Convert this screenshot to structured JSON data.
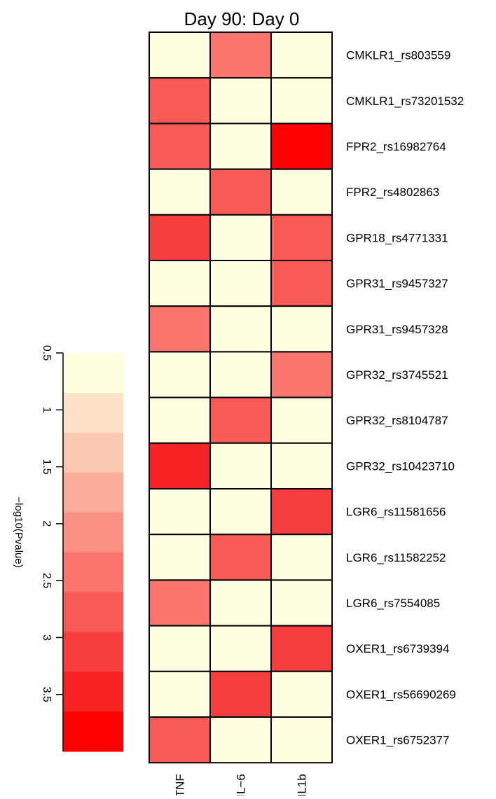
{
  "chart_data": {
    "type": "heatmap",
    "title": "Day 90: Day 0",
    "columns": [
      "TNF",
      "IL−6",
      "IL1b"
    ],
    "rows": [
      "CMKLR1_rs803559",
      "CMKLR1_rs73201532",
      "FPR2_rs16982764",
      "FPR2_rs4802863",
      "GPR18_rs4771331",
      "GPR31_rs9457327",
      "GPR31_rs9457328",
      "GPR32_rs3745521",
      "GPR32_rs8104787",
      "GPR32_rs10423710",
      "LGR6_rs11581656",
      "LGR6_rs11582252",
      "LGR6_rs7554085",
      "OXER1_rs6739394",
      "OXER1_rs56690269",
      "OXER1_rs6752377"
    ],
    "values": [
      [
        0.5,
        2.3,
        0.5
      ],
      [
        2.6,
        0.5,
        0.5
      ],
      [
        2.6,
        0.5,
        3.8
      ],
      [
        0.5,
        2.6,
        0.5
      ],
      [
        3.1,
        0.5,
        2.6
      ],
      [
        0.5,
        0.5,
        2.6
      ],
      [
        2.3,
        0.5,
        0.5
      ],
      [
        0.5,
        0.5,
        2.3
      ],
      [
        0.5,
        2.6,
        0.5
      ],
      [
        3.6,
        0.5,
        0.5
      ],
      [
        0.5,
        0.5,
        3.1
      ],
      [
        0.5,
        2.6,
        0.5
      ],
      [
        2.3,
        0.5,
        0.5
      ],
      [
        0.5,
        0.5,
        3.1
      ],
      [
        0.5,
        3.1,
        0.5
      ],
      [
        2.6,
        0.5,
        0.5
      ]
    ],
    "colorbar": {
      "label": "−log10(Pvalue)",
      "range": [
        0.5,
        4.0
      ],
      "ticks": [
        "0.5",
        "1",
        "1.5",
        "2",
        "2.5",
        "3",
        "3.5"
      ],
      "tick_values": [
        0.5,
        1.0,
        1.5,
        2.0,
        2.5,
        3.0,
        3.5
      ],
      "colors": [
        "#FFFFE1",
        "#FDE2C9",
        "#FCC7B0",
        "#FBAD9A",
        "#FA9184",
        "#F9756E",
        "#F85A56",
        "#F73E3F",
        "#F62323",
        "#FF0000"
      ]
    },
    "cell_border_color": "#000000"
  }
}
